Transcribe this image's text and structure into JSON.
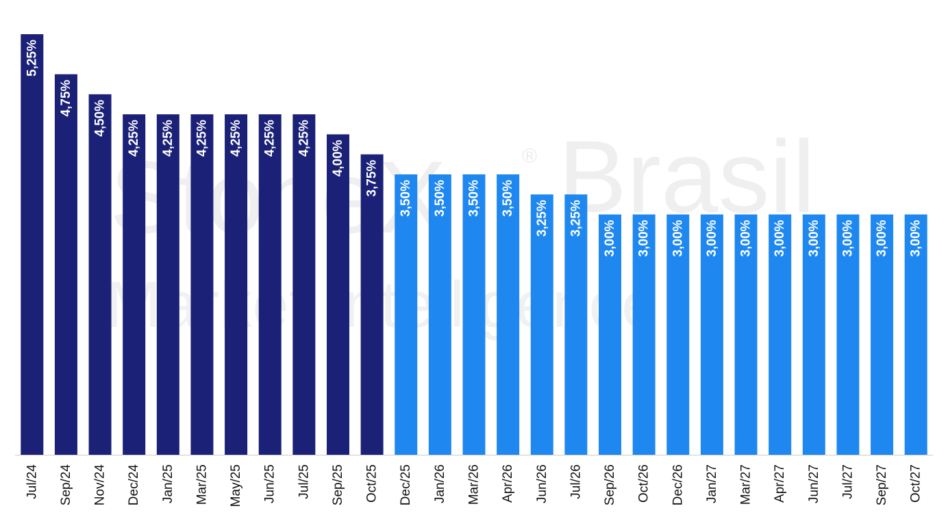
{
  "chart_data": {
    "type": "bar",
    "categories": [
      "Jul/24",
      "Sep/24",
      "Nov/24",
      "Dec/24",
      "Jan/25",
      "Mar/25",
      "May/25",
      "Jun/25",
      "Jul/25",
      "Sep/25",
      "Oct/25",
      "Dec/25",
      "Jan/26",
      "Mar/26",
      "Apr/26",
      "Jun/26",
      "Jul/26",
      "Sep/26",
      "Oct/26",
      "Dec/26",
      "Jan/27",
      "Mar/27",
      "Apr/27",
      "Jun/27",
      "Jul/27",
      "Sep/27",
      "Oct/27"
    ],
    "values": [
      5.25,
      4.75,
      4.5,
      4.25,
      4.25,
      4.25,
      4.25,
      4.25,
      4.25,
      4.0,
      3.75,
      3.5,
      3.5,
      3.5,
      3.5,
      3.25,
      3.25,
      3.0,
      3.0,
      3.0,
      3.0,
      3.0,
      3.0,
      3.0,
      3.0,
      3.0,
      3.0
    ],
    "labels": [
      "5,25%",
      "4,75%",
      "4,50%",
      "4,25%",
      "4,25%",
      "4,25%",
      "4,25%",
      "4,25%",
      "4,25%",
      "4,00%",
      "3,75%",
      "3,50%",
      "3,50%",
      "3,50%",
      "3,50%",
      "3,25%",
      "3,25%",
      "3,00%",
      "3,00%",
      "3,00%",
      "3,00%",
      "3,00%",
      "3,00%",
      "3,00%",
      "3,00%",
      "3,00%",
      "3,00%"
    ],
    "historical_count": 11,
    "colors": {
      "historical": "#1a2177",
      "projected": "#1f88f0",
      "axis": "#cccccc",
      "label": "#ffffff",
      "tick": "#111111"
    },
    "ylim": [
      0,
      5.25
    ],
    "grid": false,
    "legend": "none",
    "title": "",
    "xlabel": "",
    "ylabel": ""
  },
  "watermark": {
    "brand": "StoneX",
    "region": "Brasil",
    "subtitle": "Market Intelligence",
    "registered": "®"
  }
}
